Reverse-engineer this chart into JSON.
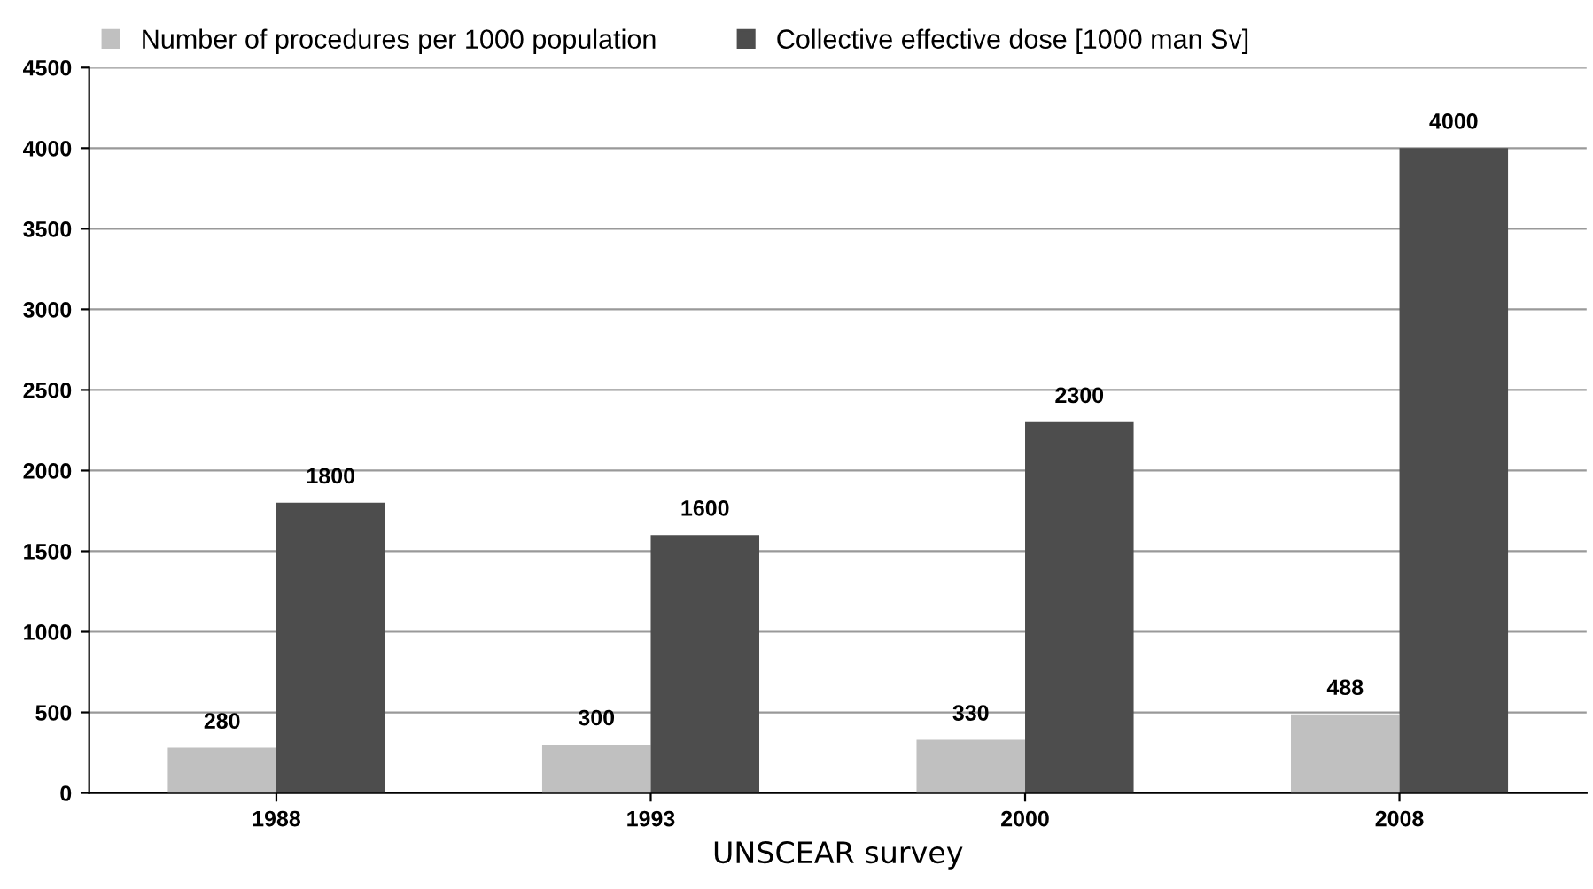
{
  "chart_data": {
    "type": "bar",
    "xlabel": "UNSCEAR survey",
    "categories": [
      "1988",
      "1993",
      "2000",
      "2008"
    ],
    "series": [
      {
        "name": "Number of procedures per 1000 population",
        "color": "#c0c0c0",
        "values": [
          280,
          300,
          330,
          488
        ]
      },
      {
        "name": "Collective effective dose [1000 man Sv]",
        "color": "#4d4d4d",
        "values": [
          1800,
          1600,
          2300,
          4000
        ]
      }
    ],
    "ylim": [
      0,
      4500
    ],
    "yticks": [
      0,
      500,
      1000,
      1500,
      2000,
      2500,
      3000,
      3500,
      4000,
      4500
    ],
    "grid": "y",
    "legend": "top left",
    "data_labels": true
  }
}
